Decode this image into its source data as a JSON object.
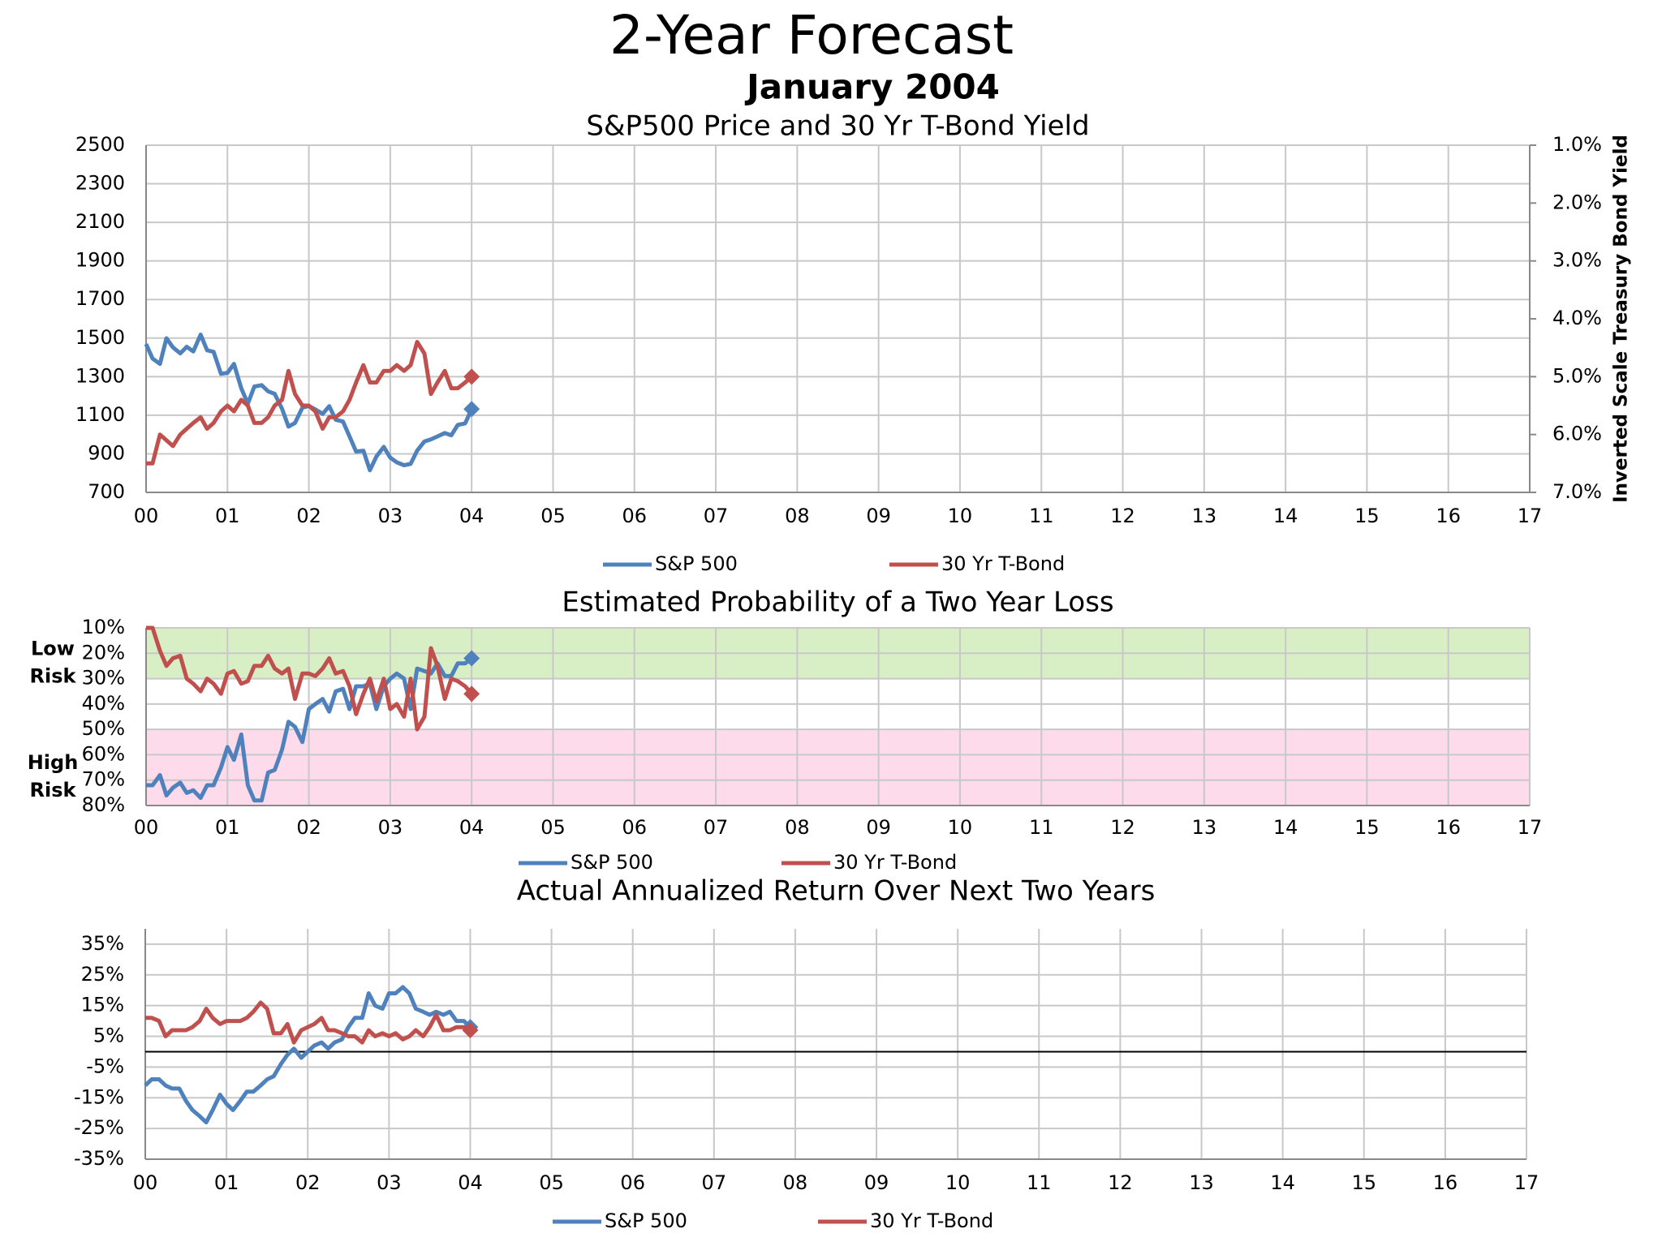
{
  "title": "2-Year Forecast",
  "subtitle": "January 2004",
  "chart_data": [
    {
      "type": "line",
      "title": "S&P500 Price and 30 Yr T-Bond Yield",
      "x": [
        2000,
        2000.08,
        2000.17,
        2000.25,
        2000.33,
        2000.42,
        2000.5,
        2000.58,
        2000.67,
        2000.75,
        2000.83,
        2000.92,
        2001,
        2001.08,
        2001.17,
        2001.25,
        2001.33,
        2001.42,
        2001.5,
        2001.58,
        2001.67,
        2001.75,
        2001.83,
        2001.92,
        2002,
        2002.08,
        2002.17,
        2002.25,
        2002.33,
        2002.42,
        2002.5,
        2002.58,
        2002.67,
        2002.75,
        2002.83,
        2002.92,
        2003,
        2003.08,
        2003.17,
        2003.25,
        2003.33,
        2003.42,
        2003.5,
        2003.58,
        2003.67,
        2003.75,
        2003.83,
        2003.92,
        2004
      ],
      "xlim": [
        2000,
        2017
      ],
      "xticks": [
        {
          "value": 2000,
          "label": "00"
        },
        {
          "value": 2001,
          "label": "01"
        },
        {
          "value": 2002,
          "label": "02"
        },
        {
          "value": 2003,
          "label": "03"
        },
        {
          "value": 2004,
          "label": "04"
        },
        {
          "value": 2005,
          "label": "05"
        },
        {
          "value": 2006,
          "label": "06"
        },
        {
          "value": 2007,
          "label": "07"
        },
        {
          "value": 2008,
          "label": "08"
        },
        {
          "value": 2009,
          "label": "09"
        },
        {
          "value": 2010,
          "label": "10"
        },
        {
          "value": 2011,
          "label": "11"
        },
        {
          "value": 2012,
          "label": "12"
        },
        {
          "value": 2013,
          "label": "13"
        },
        {
          "value": 2014,
          "label": "14"
        },
        {
          "value": 2015,
          "label": "15"
        },
        {
          "value": 2016,
          "label": "16"
        },
        {
          "value": 2017,
          "label": "17"
        }
      ],
      "ylim": [
        700,
        2500
      ],
      "yticks": [
        700,
        900,
        1100,
        1300,
        1500,
        1700,
        1900,
        2100,
        2300,
        2500
      ],
      "y2lim": [
        1,
        7
      ],
      "y2_inverted": true,
      "y2_label": "Inverted Scale Treasury Bond Yield",
      "y2ticks": [
        {
          "value": 1,
          "label": "1.0%"
        },
        {
          "value": 2,
          "label": "2.0%"
        },
        {
          "value": 3,
          "label": "3.0%"
        },
        {
          "value": 4,
          "label": "4.0%"
        },
        {
          "value": 5,
          "label": "5.0%"
        },
        {
          "value": 6,
          "label": "6.0%"
        },
        {
          "value": 7,
          "label": "7.0%"
        }
      ],
      "grid": true,
      "legend": "bottom",
      "series": [
        {
          "name": "S&P 500",
          "color": "#4f81bd",
          "values": [
            1469,
            1394,
            1366,
            1499,
            1452,
            1421,
            1455,
            1431,
            1518,
            1437,
            1429,
            1315,
            1320,
            1366,
            1240,
            1160,
            1249,
            1256,
            1224,
            1211,
            1134,
            1041,
            1060,
            1139,
            1148,
            1130,
            1107,
            1147,
            1077,
            1067,
            990,
            912,
            916,
            815,
            886,
            936,
            880,
            856,
            841,
            848,
            916,
            964,
            975,
            990,
            1008,
            996,
            1050,
            1058,
            1132
          ]
        },
        {
          "name": "30 Yr T-Bond",
          "color": "#c0504d",
          "axis": "y2",
          "values": [
            6.5,
            6.5,
            6.0,
            6.1,
            6.2,
            6.0,
            5.9,
            5.8,
            5.7,
            5.9,
            5.8,
            5.6,
            5.5,
            5.6,
            5.4,
            5.5,
            5.8,
            5.8,
            5.7,
            5.5,
            5.4,
            4.9,
            5.3,
            5.5,
            5.5,
            5.6,
            5.9,
            5.7,
            5.7,
            5.6,
            5.4,
            5.1,
            4.8,
            5.1,
            5.1,
            4.9,
            4.9,
            4.8,
            4.9,
            4.8,
            4.4,
            4.6,
            5.3,
            5.1,
            4.9,
            5.2,
            5.2,
            5.1,
            5.0
          ]
        }
      ]
    },
    {
      "type": "line",
      "title": "Estimated Probability of a Two Year Loss",
      "x": [
        2000,
        2000.08,
        2000.17,
        2000.25,
        2000.33,
        2000.42,
        2000.5,
        2000.58,
        2000.67,
        2000.75,
        2000.83,
        2000.92,
        2001,
        2001.08,
        2001.17,
        2001.25,
        2001.33,
        2001.42,
        2001.5,
        2001.58,
        2001.67,
        2001.75,
        2001.83,
        2001.92,
        2002,
        2002.08,
        2002.17,
        2002.25,
        2002.33,
        2002.42,
        2002.5,
        2002.58,
        2002.67,
        2002.75,
        2002.83,
        2002.92,
        2003,
        2003.08,
        2003.17,
        2003.25,
        2003.33,
        2003.42,
        2003.5,
        2003.58,
        2003.67,
        2003.75,
        2003.83,
        2003.92,
        2004
      ],
      "xlim": [
        2000,
        2017
      ],
      "xticks": [
        {
          "value": 2000,
          "label": "00"
        },
        {
          "value": 2001,
          "label": "01"
        },
        {
          "value": 2002,
          "label": "02"
        },
        {
          "value": 2003,
          "label": "03"
        },
        {
          "value": 2004,
          "label": "04"
        },
        {
          "value": 2005,
          "label": "05"
        },
        {
          "value": 2006,
          "label": "06"
        },
        {
          "value": 2007,
          "label": "07"
        },
        {
          "value": 2008,
          "label": "08"
        },
        {
          "value": 2009,
          "label": "09"
        },
        {
          "value": 2010,
          "label": "10"
        },
        {
          "value": 2011,
          "label": "11"
        },
        {
          "value": 2012,
          "label": "12"
        },
        {
          "value": 2013,
          "label": "13"
        },
        {
          "value": 2014,
          "label": "14"
        },
        {
          "value": 2015,
          "label": "15"
        },
        {
          "value": 2016,
          "label": "16"
        },
        {
          "value": 2017,
          "label": "17"
        }
      ],
      "ylim": [
        10,
        80
      ],
      "y_inverted": true,
      "yticks": [
        {
          "value": 10,
          "label": "10%"
        },
        {
          "value": 20,
          "label": "20%"
        },
        {
          "value": 30,
          "label": "30%"
        },
        {
          "value": 40,
          "label": "40%"
        },
        {
          "value": 50,
          "label": "50%"
        },
        {
          "value": 60,
          "label": "60%"
        },
        {
          "value": 70,
          "label": "70%"
        },
        {
          "value": 80,
          "label": "80%"
        }
      ],
      "grid": true,
      "legend": "bottom",
      "bands": [
        {
          "label": [
            "Low",
            "Risk"
          ],
          "range": [
            10,
            30
          ],
          "color": "#d8efc6"
        },
        {
          "label": [
            "High",
            "Risk"
          ],
          "range": [
            50,
            80
          ],
          "color": "#fddbeb"
        }
      ],
      "series": [
        {
          "name": "S&P 500",
          "color": "#4f81bd",
          "values": [
            72,
            72,
            68,
            76,
            73,
            71,
            75,
            74,
            77,
            72,
            72,
            65,
            57,
            62,
            52,
            72,
            78,
            78,
            67,
            66,
            58,
            47,
            49,
            55,
            42,
            40,
            38,
            43,
            35,
            34,
            42,
            33,
            33,
            32,
            42,
            33,
            30,
            28,
            30,
            42,
            26,
            27,
            28,
            24,
            29,
            29,
            24,
            24,
            22
          ]
        },
        {
          "name": "30 Yr T-Bond",
          "color": "#c0504d",
          "values": [
            10,
            10,
            19,
            25,
            22,
            21,
            30,
            32,
            35,
            30,
            32,
            36,
            28,
            27,
            32,
            31,
            25,
            25,
            21,
            26,
            28,
            26,
            38,
            28,
            28,
            29,
            26,
            22,
            28,
            27,
            33,
            44,
            36,
            30,
            39,
            30,
            42,
            40,
            45,
            30,
            50,
            45,
            18,
            25,
            38,
            30,
            31,
            33,
            36
          ]
        }
      ]
    },
    {
      "type": "line",
      "title": "Actual Annualized Return Over Next Two Years",
      "x": [
        2000,
        2000.08,
        2000.17,
        2000.25,
        2000.33,
        2000.42,
        2000.5,
        2000.58,
        2000.67,
        2000.75,
        2000.83,
        2000.92,
        2001,
        2001.08,
        2001.17,
        2001.25,
        2001.33,
        2001.42,
        2001.5,
        2001.58,
        2001.67,
        2001.75,
        2001.83,
        2001.92,
        2002,
        2002.08,
        2002.17,
        2002.25,
        2002.33,
        2002.42,
        2002.5,
        2002.58,
        2002.67,
        2002.75,
        2002.83,
        2002.92,
        2003,
        2003.08,
        2003.17,
        2003.25,
        2003.33,
        2003.42,
        2003.5,
        2003.58,
        2003.67,
        2003.75,
        2003.83,
        2003.92,
        2004
      ],
      "xlim": [
        2000,
        2017
      ],
      "xticks": [
        {
          "value": 2000,
          "label": "00"
        },
        {
          "value": 2001,
          "label": "01"
        },
        {
          "value": 2002,
          "label": "02"
        },
        {
          "value": 2003,
          "label": "03"
        },
        {
          "value": 2004,
          "label": "04"
        },
        {
          "value": 2005,
          "label": "05"
        },
        {
          "value": 2006,
          "label": "06"
        },
        {
          "value": 2007,
          "label": "07"
        },
        {
          "value": 2008,
          "label": "08"
        },
        {
          "value": 2009,
          "label": "09"
        },
        {
          "value": 2010,
          "label": "10"
        },
        {
          "value": 2011,
          "label": "11"
        },
        {
          "value": 2012,
          "label": "12"
        },
        {
          "value": 2013,
          "label": "13"
        },
        {
          "value": 2014,
          "label": "14"
        },
        {
          "value": 2015,
          "label": "15"
        },
        {
          "value": 2016,
          "label": "16"
        },
        {
          "value": 2017,
          "label": "17"
        }
      ],
      "ylim": [
        -35,
        40
      ],
      "yticks": [
        {
          "value": -35,
          "label": "-35%"
        },
        {
          "value": -25,
          "label": "-25%"
        },
        {
          "value": -15,
          "label": "-15%"
        },
        {
          "value": -5,
          "label": "-5%"
        },
        {
          "value": 5,
          "label": "5%"
        },
        {
          "value": 15,
          "label": "15%"
        },
        {
          "value": 25,
          "label": "25%"
        },
        {
          "value": 35,
          "label": "35%"
        }
      ],
      "grid": true,
      "zero_line": true,
      "legend": "bottom",
      "series": [
        {
          "name": "S&P 500",
          "color": "#4f81bd",
          "values": [
            -11,
            -9,
            -9,
            -11,
            -12,
            -12,
            -16,
            -19,
            -21,
            -23,
            -19,
            -14,
            -17,
            -19,
            -16,
            -13,
            -13,
            -11,
            -9,
            -8,
            -4,
            -1,
            1,
            -2,
            0,
            2,
            3,
            1,
            3,
            4,
            8,
            11,
            11,
            19,
            15,
            14,
            19,
            19,
            21,
            19,
            14,
            13,
            12,
            13,
            12,
            13,
            10,
            10,
            8
          ]
        },
        {
          "name": "30 Yr T-Bond",
          "color": "#c0504d",
          "values": [
            11,
            11,
            10,
            5,
            7,
            7,
            7,
            8,
            10,
            14,
            11,
            9,
            10,
            10,
            10,
            11,
            13,
            16,
            14,
            6,
            6,
            9,
            3,
            7,
            8,
            9,
            11,
            7,
            7,
            6,
            5,
            5,
            3,
            7,
            5,
            6,
            5,
            6,
            4,
            5,
            7,
            5,
            8,
            12,
            7,
            7,
            8,
            8,
            7
          ]
        }
      ]
    }
  ]
}
